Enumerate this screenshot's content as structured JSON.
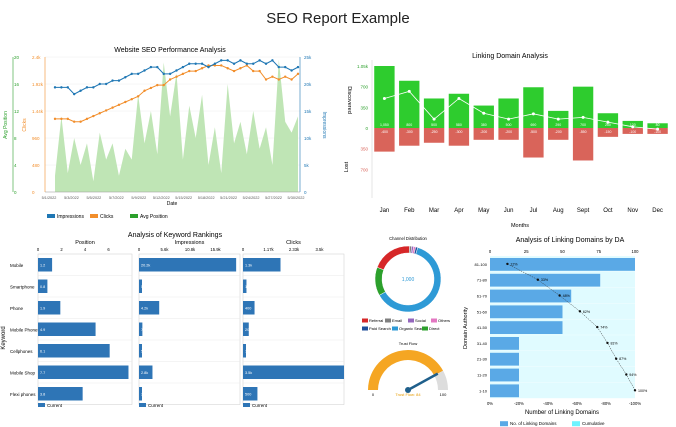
{
  "page": {
    "title": "SEO Report Example"
  },
  "colors": {
    "blue": "#1f77b4",
    "orange": "#f28e2b",
    "green": "#2ca02c",
    "area": "#bfe5b5",
    "bar_green": "#2ecc2e",
    "bar_red": "#d9645a",
    "bar_blue": "#2e75b6",
    "da_blue": "#5aa9e6",
    "da_cumul": "#e0fbff"
  },
  "chart_data": [
    {
      "id": "seo-performance",
      "type": "line",
      "title": "Website SEO Performance Analysis",
      "xlabel": "Date",
      "ylabel_left_1": "Avg Position",
      "ylabel_left_2": "Clicks",
      "ylabel_right": "Impressions",
      "y1_ticks": [
        "0",
        "4",
        "8",
        "12",
        "16",
        "20"
      ],
      "y2_ticks": [
        "0",
        "480",
        "960",
        "1.44k",
        "1.92k",
        "2.4k"
      ],
      "y3_ticks": [
        "0",
        "5k",
        "10k",
        "15k",
        "20k",
        "25k"
      ],
      "x_ticks": [
        "5/1/2022",
        "5/3/2022",
        "5/5/2022",
        "5/7/2022",
        "5/9/2022",
        "5/12/2022",
        "5/15/2022",
        "5/18/2022",
        "5/21/2022",
        "5/24/2022",
        "5/27/2022",
        "5/30/2022"
      ],
      "legend": [
        "Impressions",
        "Clicks",
        "Avg Position"
      ],
      "impressions": [
        3000,
        14000,
        3500,
        10000,
        5000,
        9000,
        2000,
        11000,
        6000,
        9000,
        3000,
        8000,
        6000,
        18000,
        9000,
        15000,
        7000,
        24000,
        14000,
        22000,
        6000,
        16000,
        10000,
        18000,
        5000,
        12000,
        3500,
        20000,
        9000,
        13000,
        7000,
        15000,
        8000,
        12000,
        5000,
        24500,
        13000,
        11000,
        14000
      ],
      "clicks": [
        1300,
        1300,
        1300,
        1250,
        1250,
        1300,
        1350,
        1400,
        1450,
        1500,
        1550,
        1600,
        1650,
        1700,
        1800,
        1850,
        1900,
        1900,
        2000,
        2050,
        2100,
        2150,
        2150,
        2200,
        2250,
        2250,
        2250,
        2200,
        2150,
        2200,
        2250,
        2150,
        2150,
        2000,
        2050,
        2000,
        2050,
        2000,
        2100
      ],
      "avg_position": [
        15.5,
        15.5,
        15.5,
        14.5,
        15,
        15.5,
        15.5,
        16,
        16,
        16.5,
        16.5,
        17,
        17.5,
        17.5,
        18,
        18.5,
        18.5,
        17.5,
        17.5,
        18,
        18.5,
        19,
        19,
        19,
        18.5,
        19,
        19.5,
        19.5,
        19,
        19.5,
        19,
        19,
        19.5,
        19,
        19.5,
        18.5,
        18.5,
        18,
        18.5
      ]
    },
    {
      "id": "linking-domain",
      "type": "bar",
      "title": "Linking Domain Analysis",
      "xlabel": "Months",
      "ylabel_top": "Discovered",
      "ylabel_bottom": "Lost",
      "y_ticks": [
        "1.05k",
        "700",
        "350",
        "0",
        "350",
        "700"
      ],
      "categories": [
        "Jan",
        "Feb",
        "Mar",
        "Apr",
        "May",
        "Jun",
        "Jul",
        "Aug",
        "Sept",
        "Oct",
        "Nov",
        "Dec"
      ],
      "discovered": [
        1050,
        800,
        500,
        580,
        380,
        500,
        690,
        290,
        700,
        250,
        120,
        80
      ],
      "lost": [
        -400,
        -300,
        -250,
        -300,
        -200,
        -200,
        -500,
        -200,
        -550,
        -150,
        -100,
        -100
      ],
      "discovered_labels": [
        "1,050",
        "800",
        "500",
        "580",
        "380",
        "500",
        "690",
        "290",
        "700",
        "250",
        "120",
        "80"
      ],
      "lost_labels": [
        "-400",
        "-300",
        "-250",
        "-300",
        "-200",
        "-200",
        "-500",
        "-200",
        "-550",
        "-150",
        "-100",
        "-100"
      ],
      "net": [
        500,
        620,
        150,
        500,
        250,
        150,
        240,
        150,
        180,
        100,
        20,
        -20
      ]
    },
    {
      "id": "keyword-rankings",
      "type": "bar",
      "title": "Analysis of Keyword Rankings",
      "ylabel": "Keyword",
      "keywords": [
        "Mobile",
        "Smartphone",
        "Phone",
        "Mobile Phones",
        "Cellphones",
        "Mobile Shop",
        "Flexi phones"
      ],
      "panels": [
        {
          "name": "Position",
          "ticks": [
            "0",
            "2",
            "4",
            "6"
          ],
          "max": 8,
          "values": [
            1.2,
            0.8,
            1.9,
            4.9,
            6.1,
            7.7,
            3.8
          ],
          "labels": [
            "1.2",
            "0.8",
            "1.9",
            "4.9",
            "6.1",
            "7.7",
            "3.8"
          ]
        },
        {
          "name": "Impressions",
          "ticks": [
            "0",
            "5.6k",
            "10.8k",
            "15.9k"
          ],
          "max": 21000,
          "values": [
            20200,
            500,
            4200,
            700,
            500,
            2800,
            350
          ],
          "labels": [
            "20.2k",
            "500",
            "4.2k",
            "700",
            "500",
            "2.8k",
            "350"
          ]
        },
        {
          "name": "Clicks",
          "ticks": [
            "0",
            "1.17k",
            "2.33k",
            "3.5k"
          ],
          "max": 3500,
          "values": [
            1300,
            120,
            400,
            200,
            100,
            3500,
            500
          ],
          "labels": [
            "1.3k",
            "120",
            "400",
            "200",
            "100",
            "3.5k",
            "500"
          ]
        }
      ],
      "legend": "Current"
    },
    {
      "id": "channel-distribution",
      "type": "pie",
      "title": "Channel Distribution",
      "center_label": "1,000",
      "slices": [
        {
          "name": "Organic Search",
          "value": 62,
          "color": "#2e9ad6"
        },
        {
          "name": "Direct",
          "value": 14,
          "color": "#2ca02c"
        },
        {
          "name": "Referral",
          "value": 20,
          "color": "#d62728"
        },
        {
          "name": "Email",
          "value": 1,
          "color": "#7f7f7f"
        },
        {
          "name": "Social",
          "value": 1,
          "color": "#9467bd"
        },
        {
          "name": "Others",
          "value": 1,
          "color": "#e377c2"
        },
        {
          "name": "Paid Search",
          "value": 1,
          "color": "#1f4e9a"
        }
      ],
      "legend_order": [
        "Referral",
        "Email",
        "Social",
        "Others",
        "Paid Search",
        "Organic Search",
        "Direct"
      ]
    },
    {
      "id": "gauge",
      "type": "gauge",
      "title": "Trust Flow",
      "value": 84,
      "min": 0,
      "max": 100,
      "min_label": "0",
      "max_label": "100",
      "value_label": "Trust Flow: 84"
    },
    {
      "id": "linking-domains-by-da",
      "type": "bar",
      "title": "Analysis of Linking Domains by DA",
      "xlabel": "Number of Linking Domains",
      "ylabel": "Domain Authority",
      "categories": [
        "81-100",
        "71-80",
        "61-70",
        "51-60",
        "41-50",
        "31-40",
        "21-30",
        "11-20",
        "1-10"
      ],
      "values": [
        100,
        76,
        56,
        50,
        50,
        20,
        20,
        20,
        20
      ],
      "cumulative": [
        12,
        33,
        48,
        62,
        74,
        81,
        87,
        94,
        100
      ],
      "cumulative_labels": [
        "12%",
        "33%",
        "48%",
        "62%",
        "74%",
        "81%",
        "87%",
        "94%",
        "100%"
      ],
      "x_ticks_top": [
        "0",
        "25",
        "50",
        "75",
        "100"
      ],
      "x_ticks_bottom": [
        "0%",
        "-20%",
        "-40%",
        "-60%",
        "-80%",
        "-100%"
      ],
      "legend": [
        "No. of Linking Domains",
        "Cumulative"
      ]
    }
  ]
}
